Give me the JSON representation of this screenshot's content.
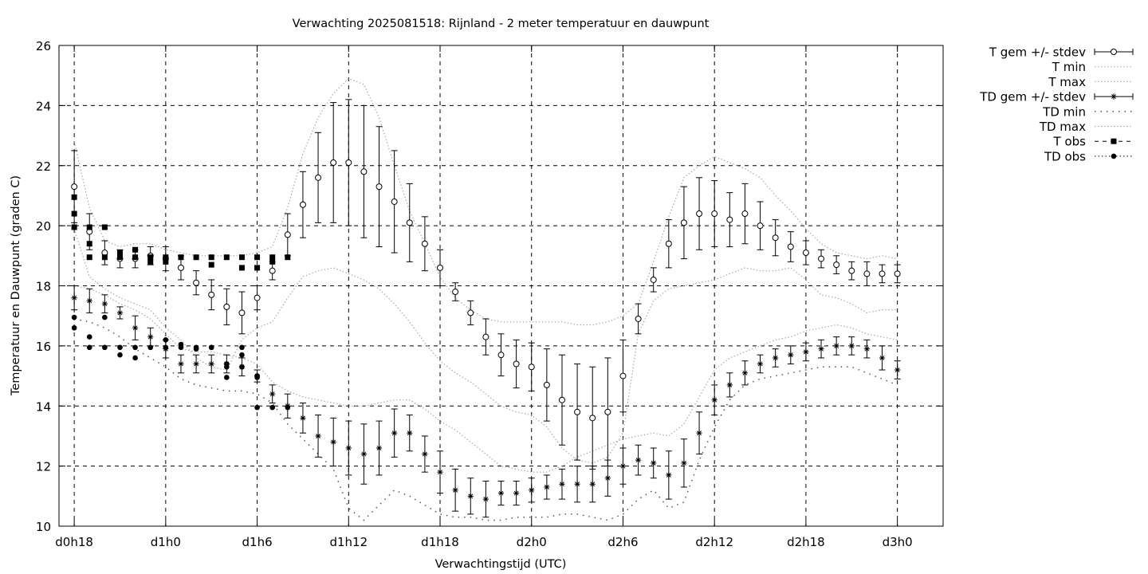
{
  "chart_data": {
    "type": "line",
    "title": "Verwachting 2025081518: Rijnland - 2 meter temperatuur en dauwpunt",
    "xlabel": "Verwachtingstijd (UTC)",
    "ylabel": "Temperatuur en Dauwpunt (graden C)",
    "x_unit": "hours since d0h18",
    "xlim": [
      -1,
      57
    ],
    "ylim": [
      10,
      26
    ],
    "yticks": [
      10,
      12,
      14,
      16,
      18,
      20,
      22,
      24,
      26
    ],
    "xticks": [
      {
        "x": 0,
        "label": "d0h18"
      },
      {
        "x": 6,
        "label": "d1h0"
      },
      {
        "x": 12,
        "label": "d1h6"
      },
      {
        "x": 18,
        "label": "d1h12"
      },
      {
        "x": 24,
        "label": "d1h18"
      },
      {
        "x": 30,
        "label": "d2h0"
      },
      {
        "x": 36,
        "label": "d2h6"
      },
      {
        "x": 42,
        "label": "d2h12"
      },
      {
        "x": 48,
        "label": "d2h18"
      },
      {
        "x": 54,
        "label": "d3h0"
      }
    ],
    "grid": true,
    "legend_position": "outside-top-right",
    "series": [
      {
        "name": "T gem +/- stdev",
        "style": "errorbar-circle",
        "x": [
          0,
          1,
          2,
          3,
          4,
          5,
          6,
          7,
          8,
          9,
          10,
          11,
          12,
          13,
          14,
          15,
          16,
          17,
          18,
          19,
          20,
          21,
          22,
          23,
          24,
          25,
          26,
          27,
          28,
          29,
          30,
          31,
          32,
          33,
          34,
          35,
          36,
          37,
          38,
          39,
          40,
          41,
          42,
          43,
          44,
          45,
          46,
          47,
          48,
          49,
          50,
          51,
          52,
          53,
          54
        ],
        "y": [
          21.3,
          19.8,
          19.1,
          18.9,
          18.9,
          19.0,
          18.9,
          18.6,
          18.1,
          17.7,
          17.3,
          17.1,
          17.6,
          18.5,
          19.7,
          20.7,
          21.6,
          22.1,
          22.1,
          21.8,
          21.3,
          20.8,
          20.1,
          19.4,
          18.6,
          17.8,
          17.1,
          16.3,
          15.7,
          15.4,
          15.3,
          14.7,
          14.2,
          13.8,
          13.6,
          13.8,
          15.0,
          16.9,
          18.2,
          19.4,
          20.1,
          20.4,
          20.4,
          20.2,
          20.4,
          20.0,
          19.6,
          19.3,
          19.1,
          18.9,
          18.7,
          18.5,
          18.4,
          18.4,
          18.4
        ],
        "err": [
          1.2,
          0.6,
          0.4,
          0.3,
          0.3,
          0.3,
          0.4,
          0.4,
          0.4,
          0.5,
          0.6,
          0.7,
          0.4,
          0.3,
          0.7,
          1.1,
          1.5,
          2.0,
          2.1,
          2.2,
          2.0,
          1.7,
          1.3,
          0.9,
          0.6,
          0.3,
          0.4,
          0.6,
          0.7,
          0.8,
          0.8,
          1.2,
          1.5,
          1.6,
          1.7,
          1.8,
          1.2,
          0.5,
          0.4,
          0.8,
          1.2,
          1.2,
          1.1,
          0.9,
          1.0,
          0.8,
          0.6,
          0.5,
          0.4,
          0.3,
          0.3,
          0.3,
          0.4,
          0.3,
          0.3
        ]
      },
      {
        "name": "T min",
        "style": "dotted",
        "x": [
          0,
          1,
          2,
          3,
          4,
          5,
          6,
          7,
          8,
          9,
          10,
          11,
          12,
          13,
          14,
          15,
          16,
          17,
          18,
          19,
          20,
          21,
          22,
          23,
          24,
          25,
          26,
          27,
          28,
          29,
          30,
          31,
          32,
          33,
          34,
          35,
          36,
          37,
          38,
          39,
          40,
          41,
          42,
          43,
          44,
          45,
          46,
          47,
          48,
          49,
          50,
          51,
          52,
          53,
          54
        ],
        "y": [
          19.9,
          18.3,
          17.9,
          17.6,
          17.4,
          17.2,
          16.6,
          16.2,
          15.6,
          15.3,
          15.2,
          16.2,
          16.6,
          16.8,
          17.6,
          18.3,
          18.5,
          18.6,
          18.4,
          18.2,
          17.9,
          17.4,
          16.8,
          16.1,
          15.5,
          15.1,
          14.8,
          14.4,
          14.0,
          13.8,
          13.7,
          13.3,
          12.6,
          12.2,
          12.1,
          12.3,
          13.1,
          16.4,
          17.5,
          17.9,
          18.0,
          18.1,
          18.2,
          18.4,
          18.6,
          18.5,
          18.5,
          18.6,
          18.2,
          17.7,
          17.6,
          17.4,
          17.1,
          17.2,
          17.2
        ]
      },
      {
        "name": "T max",
        "style": "dotted",
        "x": [
          0,
          1,
          2,
          3,
          4,
          5,
          6,
          7,
          8,
          9,
          10,
          11,
          12,
          13,
          14,
          15,
          16,
          17,
          18,
          19,
          20,
          21,
          22,
          23,
          24,
          25,
          26,
          27,
          28,
          29,
          30,
          31,
          32,
          33,
          34,
          35,
          36,
          37,
          38,
          39,
          40,
          41,
          42,
          43,
          44,
          45,
          46,
          47,
          48,
          49,
          50,
          51,
          52,
          53,
          54
        ],
        "y": [
          22.8,
          20.6,
          19.5,
          19.3,
          19.4,
          19.4,
          19.2,
          19.1,
          19.0,
          19.0,
          19.0,
          19.0,
          19.1,
          19.3,
          20.6,
          22.4,
          23.6,
          24.4,
          24.9,
          24.7,
          23.6,
          22.0,
          20.5,
          19.4,
          18.3,
          17.6,
          17.2,
          16.9,
          16.8,
          16.8,
          16.8,
          16.8,
          16.8,
          16.7,
          16.7,
          16.8,
          17.0,
          17.4,
          18.8,
          20.3,
          21.6,
          22.0,
          22.3,
          22.1,
          21.9,
          21.6,
          21.0,
          20.5,
          19.9,
          19.4,
          19.1,
          19.0,
          18.9,
          19.0,
          18.9
        ]
      },
      {
        "name": "TD gem +/- stdev",
        "style": "errorbar-star",
        "x": [
          0,
          1,
          2,
          3,
          4,
          5,
          6,
          7,
          8,
          9,
          10,
          11,
          12,
          13,
          14,
          15,
          16,
          17,
          18,
          19,
          20,
          21,
          22,
          23,
          24,
          25,
          26,
          27,
          28,
          29,
          30,
          31,
          32,
          33,
          34,
          35,
          36,
          37,
          38,
          39,
          40,
          41,
          42,
          43,
          44,
          45,
          46,
          47,
          48,
          49,
          50,
          51,
          52,
          53,
          54
        ],
        "y": [
          17.6,
          17.5,
          17.4,
          17.1,
          16.6,
          16.3,
          15.9,
          15.4,
          15.4,
          15.4,
          15.4,
          15.3,
          15.0,
          14.4,
          14.0,
          13.6,
          13.0,
          12.8,
          12.6,
          12.4,
          12.6,
          13.1,
          13.1,
          12.4,
          11.8,
          11.2,
          11.0,
          10.9,
          11.1,
          11.1,
          11.2,
          11.3,
          11.4,
          11.4,
          11.4,
          11.6,
          12.0,
          12.2,
          12.1,
          11.7,
          12.1,
          13.1,
          14.2,
          14.7,
          15.1,
          15.4,
          15.6,
          15.7,
          15.8,
          15.9,
          16.0,
          16.0,
          15.9,
          15.6,
          15.2
        ],
        "err": [
          0.4,
          0.4,
          0.3,
          0.2,
          0.4,
          0.3,
          0.3,
          0.3,
          0.3,
          0.3,
          0.3,
          0.3,
          0.2,
          0.3,
          0.4,
          0.5,
          0.7,
          0.8,
          0.9,
          1.0,
          0.9,
          0.8,
          0.6,
          0.6,
          0.7,
          0.7,
          0.6,
          0.6,
          0.4,
          0.4,
          0.4,
          0.4,
          0.5,
          0.6,
          0.6,
          0.6,
          0.6,
          0.5,
          0.5,
          0.8,
          0.8,
          0.7,
          0.5,
          0.4,
          0.4,
          0.3,
          0.3,
          0.3,
          0.3,
          0.3,
          0.3,
          0.3,
          0.3,
          0.4,
          0.3
        ]
      },
      {
        "name": "TD min",
        "style": "dotted-sparse",
        "x": [
          0,
          1,
          2,
          3,
          4,
          5,
          6,
          7,
          8,
          9,
          10,
          11,
          12,
          13,
          14,
          15,
          16,
          17,
          18,
          19,
          20,
          21,
          22,
          23,
          24,
          25,
          26,
          27,
          28,
          29,
          30,
          31,
          32,
          33,
          34,
          35,
          36,
          37,
          38,
          39,
          40,
          41,
          42,
          43,
          44,
          45,
          46,
          47,
          48,
          49,
          50,
          51,
          52,
          53,
          54
        ],
        "y": [
          16.9,
          16.8,
          16.6,
          16.3,
          15.9,
          15.6,
          15.3,
          14.9,
          14.7,
          14.6,
          14.5,
          14.5,
          14.4,
          14.1,
          13.4,
          12.9,
          12.4,
          11.9,
          10.6,
          10.2,
          10.7,
          11.2,
          11.0,
          10.7,
          10.4,
          10.3,
          10.3,
          10.2,
          10.2,
          10.3,
          10.3,
          10.3,
          10.4,
          10.4,
          10.3,
          10.2,
          10.4,
          10.9,
          11.2,
          10.6,
          10.8,
          12.2,
          13.3,
          14.2,
          14.7,
          14.9,
          15.0,
          15.1,
          15.2,
          15.3,
          15.3,
          15.3,
          15.1,
          14.9,
          14.7
        ]
      },
      {
        "name": "TD max",
        "style": "dotted",
        "x": [
          0,
          1,
          2,
          3,
          4,
          5,
          6,
          7,
          8,
          9,
          10,
          11,
          12,
          13,
          14,
          15,
          16,
          17,
          18,
          19,
          20,
          21,
          22,
          23,
          24,
          25,
          26,
          27,
          28,
          29,
          30,
          31,
          32,
          33,
          34,
          35,
          36,
          37,
          38,
          39,
          40,
          41,
          42,
          43,
          44,
          45,
          46,
          47,
          48,
          49,
          50,
          51,
          52,
          53,
          54
        ],
        "y": [
          18.0,
          17.9,
          17.7,
          17.4,
          17.2,
          16.9,
          16.4,
          15.9,
          15.8,
          15.8,
          15.7,
          15.6,
          15.4,
          14.8,
          14.5,
          14.3,
          14.2,
          14.1,
          14.0,
          14.0,
          14.1,
          14.2,
          14.2,
          13.9,
          13.5,
          13.2,
          12.8,
          12.4,
          12.0,
          11.9,
          11.8,
          11.8,
          12.0,
          12.3,
          12.5,
          12.7,
          12.9,
          13.0,
          13.1,
          13.0,
          13.4,
          14.3,
          15.2,
          15.6,
          15.8,
          16.0,
          16.2,
          16.3,
          16.5,
          16.6,
          16.7,
          16.6,
          16.4,
          16.3,
          16.2
        ]
      },
      {
        "name": "T obs",
        "style": "square",
        "x": [
          0,
          0,
          0,
          1,
          1,
          1,
          2,
          2,
          3,
          3,
          4,
          4,
          5,
          5,
          6,
          6,
          7,
          8,
          9,
          9,
          10,
          11,
          11,
          12,
          12,
          13,
          13,
          14
        ],
        "y": [
          20.95,
          20.4,
          19.95,
          19.95,
          19.4,
          18.95,
          19.95,
          18.95,
          19.1,
          18.95,
          19.2,
          18.95,
          18.95,
          18.8,
          18.95,
          18.8,
          18.95,
          18.95,
          18.95,
          18.7,
          18.95,
          18.95,
          18.6,
          18.95,
          18.6,
          18.95,
          18.8,
          18.95
        ]
      },
      {
        "name": "TD obs",
        "style": "dot",
        "x": [
          0,
          0,
          1,
          1,
          2,
          2,
          3,
          3,
          4,
          4,
          5,
          6,
          6,
          7,
          7,
          8,
          8,
          9,
          9,
          10,
          10,
          10,
          11,
          11,
          11,
          12,
          12,
          12,
          13,
          14
        ],
        "y": [
          16.95,
          16.6,
          16.3,
          15.95,
          16.95,
          15.95,
          15.95,
          15.7,
          15.95,
          15.6,
          15.95,
          16.2,
          15.95,
          16.05,
          15.95,
          15.95,
          15.9,
          15.95,
          15.95,
          15.4,
          15.3,
          14.95,
          15.95,
          15.7,
          15.3,
          15.0,
          14.95,
          13.95,
          13.95,
          13.95
        ]
      }
    ]
  }
}
